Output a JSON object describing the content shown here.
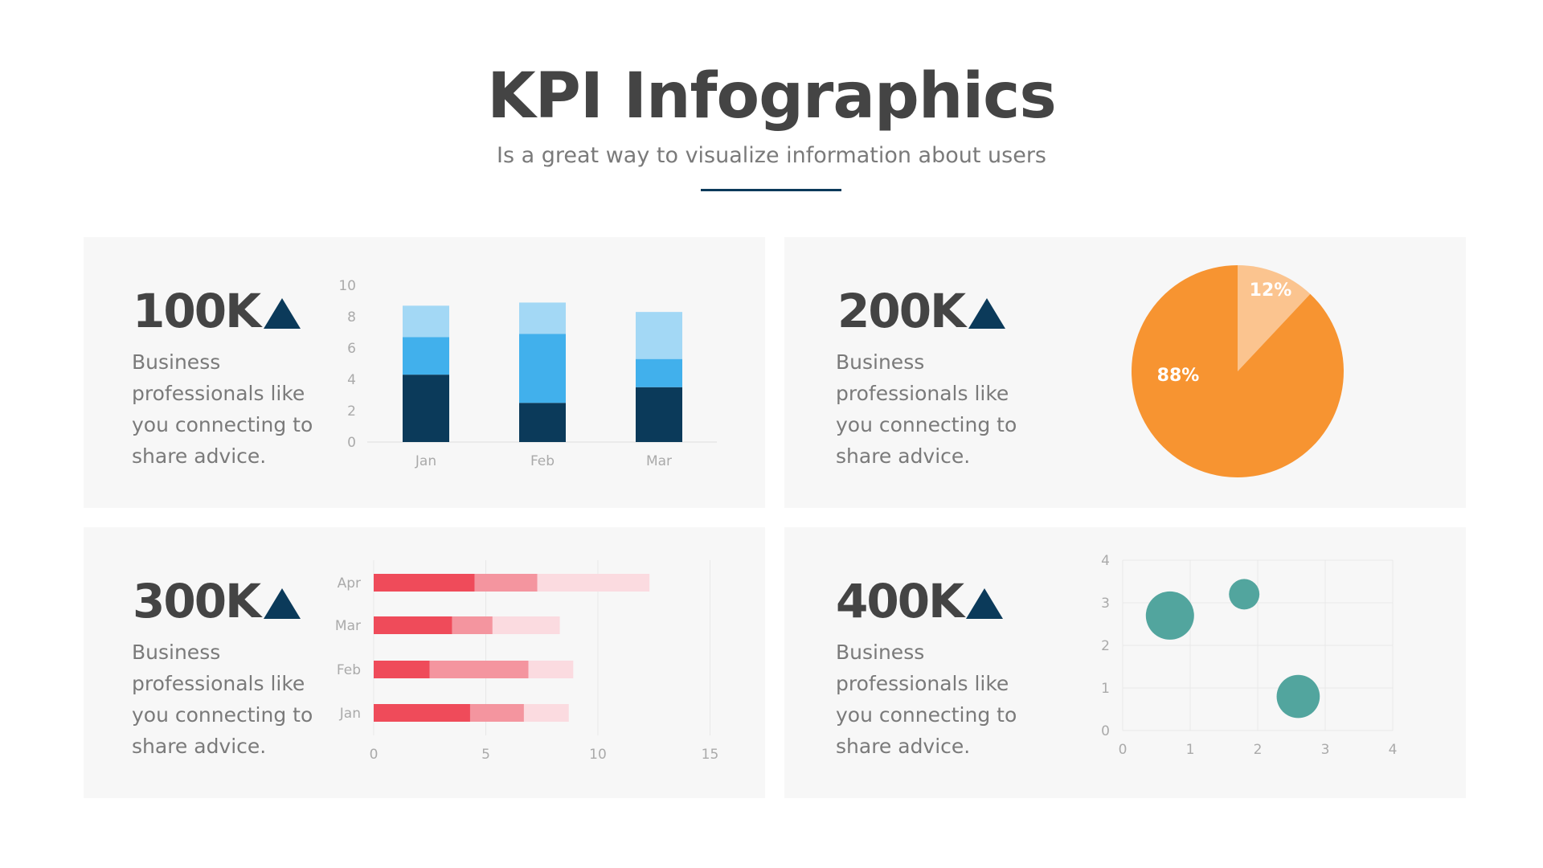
{
  "header": {
    "title": "KPI Infographics",
    "subtitle": "Is a great way to visualize information about users"
  },
  "panels": [
    {
      "kpi": "100K",
      "description": "Business professionals like you connecting to share advice."
    },
    {
      "kpi": "200K",
      "description": "Business professionals like you connecting to share advice."
    },
    {
      "kpi": "300K",
      "description": "Business professionals like you connecting to share advice."
    },
    {
      "kpi": "400K",
      "description": "Business professionals like you connecting to share advice."
    }
  ],
  "colors": {
    "accent": "#0b3a5a",
    "panel": "#f7f7f7"
  },
  "chart_data": [
    {
      "type": "bar",
      "stacked": true,
      "orientation": "vertical",
      "categories": [
        "Jan",
        "Feb",
        "Mar"
      ],
      "series": [
        {
          "values": [
            4.3,
            2.5,
            3.5
          ],
          "color": "#0b3a5a"
        },
        {
          "values": [
            2.4,
            4.4,
            1.8
          ],
          "color": "#41b0ec"
        },
        {
          "values": [
            2.0,
            2.0,
            3.0
          ],
          "color": "#a3d8f5"
        }
      ],
      "ylim": [
        0,
        10
      ],
      "yticks": [
        "0",
        "2",
        "4",
        "6",
        "8",
        "10"
      ],
      "grid": false
    },
    {
      "type": "pie",
      "slices": [
        {
          "label": "12%",
          "value": 12,
          "color": "#fbc48f"
        },
        {
          "label": "88%",
          "value": 88,
          "color": "#f79431"
        }
      ]
    },
    {
      "type": "bar",
      "stacked": true,
      "orientation": "horizontal",
      "categories": [
        "Jan",
        "Feb",
        "Mar",
        "Apr"
      ],
      "series": [
        {
          "values": [
            4.3,
            2.5,
            3.5,
            4.5
          ],
          "color": "#ef4b5a"
        },
        {
          "values": [
            2.4,
            4.4,
            1.8,
            2.8
          ],
          "color": "#f4959f"
        },
        {
          "values": [
            2.0,
            2.0,
            3.0,
            5.0
          ],
          "color": "#fbdbe0"
        }
      ],
      "xlim": [
        0,
        15
      ],
      "xticks": [
        "0",
        "5",
        "10",
        "15"
      ],
      "grid": true
    },
    {
      "type": "scatter",
      "bubble": true,
      "points": [
        {
          "x": 0.7,
          "y": 2.7,
          "size": 10
        },
        {
          "x": 1.8,
          "y": 3.2,
          "size": 4
        },
        {
          "x": 2.6,
          "y": 0.8,
          "size": 8
        }
      ],
      "color": "#52a59e",
      "xlim": [
        0,
        4
      ],
      "ylim": [
        0,
        4
      ],
      "xticks": [
        "0",
        "1",
        "2",
        "3",
        "4"
      ],
      "yticks": [
        "0",
        "1",
        "2",
        "3",
        "4"
      ],
      "grid": true
    }
  ]
}
